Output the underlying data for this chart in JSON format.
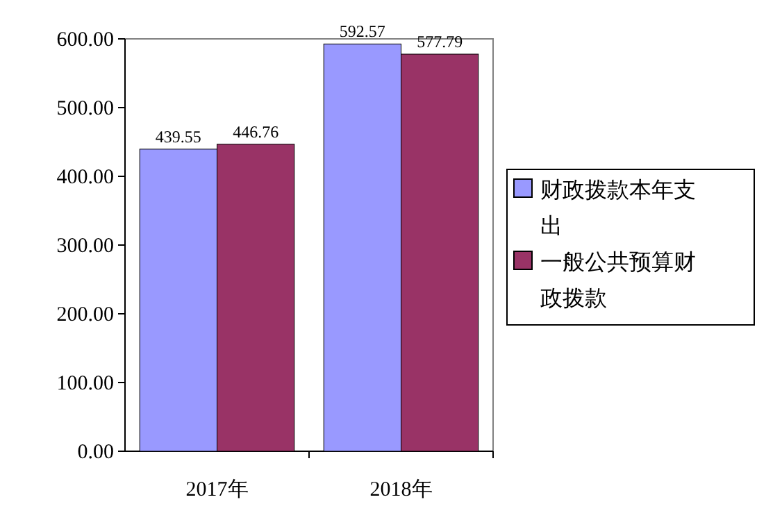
{
  "chart_data": {
    "type": "bar",
    "categories": [
      "2017年",
      "2018年"
    ],
    "series": [
      {
        "name": "财政拨款本年支出",
        "color": "#9999ff",
        "values": [
          439.55,
          592.57
        ]
      },
      {
        "name": "一般公共预算财政拨款",
        "color": "#993366",
        "values": [
          446.76,
          577.79
        ]
      }
    ],
    "ylim": [
      0,
      600
    ],
    "yticks": [
      {
        "value": 0,
        "label": "0.00"
      },
      {
        "value": 100,
        "label": "100.00"
      },
      {
        "value": 200,
        "label": "200.00"
      },
      {
        "value": 300,
        "label": "300.00"
      },
      {
        "value": 400,
        "label": "400.00"
      },
      {
        "value": 500,
        "label": "500.00"
      },
      {
        "value": 600,
        "label": "600.00"
      }
    ],
    "data_labels": true,
    "legend": "right"
  }
}
